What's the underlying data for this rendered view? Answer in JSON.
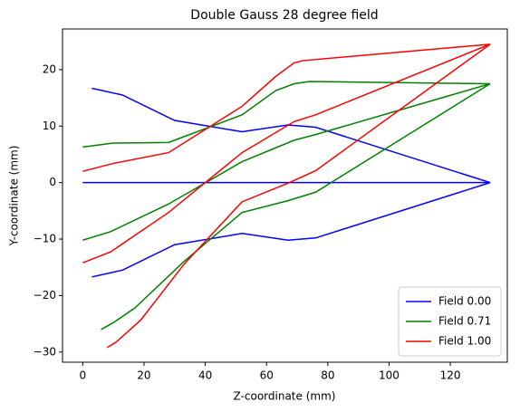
{
  "chart_data": {
    "type": "line",
    "title": "Double Gauss 28 degree field",
    "x_label": "Z-coordinate (mm)",
    "y_label": "Y-coordinate (mm)",
    "xlim": [
      -6.6,
      138.6
    ],
    "ylim": [
      -31.8,
      27.2
    ],
    "xticks": [
      0,
      20,
      40,
      60,
      80,
      100,
      120
    ],
    "yticks": [
      {
        "value": -30,
        "label": "−30"
      },
      {
        "value": -20,
        "label": "−20"
      },
      {
        "value": -10,
        "label": "−10"
      },
      0,
      10,
      20
    ],
    "legend": "lower right",
    "series": [
      {
        "name": "Field 0.00",
        "color": "#0000ff",
        "rays": [
          {
            "x": [
              0,
              133
            ],
            "values": [
              0,
              0
            ]
          },
          {
            "x": [
              3,
              13,
              30,
              52,
              67,
              76,
              133
            ],
            "values": [
              16.7,
              15.5,
              11,
              9,
              10.2,
              9.8,
              0
            ]
          },
          {
            "x": [
              3,
              13,
              30,
              52,
              67,
              76,
              133
            ],
            "values": [
              -16.7,
              -15.5,
              -11,
              -9,
              -10.2,
              -9.8,
              0
            ]
          }
        ]
      },
      {
        "name": "Field 0.71",
        "color": "#008000",
        "rays": [
          {
            "x": [
              0,
              9,
              28,
              52,
              69,
              76,
              133
            ],
            "values": [
              -10.2,
              -8.7,
              -3.8,
              3.7,
              7.5,
              8.5,
              17.5
            ]
          },
          {
            "x": [
              0,
              10,
              28,
              52,
              63,
              69,
              74,
              133
            ],
            "values": [
              6.3,
              7,
              7.1,
              12,
              16.3,
              17.5,
              17.9,
              17.5
            ]
          },
          {
            "x": [
              6,
              10,
              17,
              33,
              52,
              67,
              76,
              133
            ],
            "values": [
              -26,
              -24.8,
              -22.2,
              -14,
              -5.3,
              -3.2,
              -1.7,
              17.5
            ]
          }
        ]
      },
      {
        "name": "Field 1.00",
        "color": "#ff0000",
        "rays": [
          {
            "x": [
              0,
              9,
              28,
              52,
              69,
              76,
              133
            ],
            "values": [
              -14.2,
              -12.3,
              -5.3,
              5.3,
              10.8,
              12,
              24.5
            ]
          },
          {
            "x": [
              0,
              10,
              28,
              52,
              63,
              69,
              72,
              133
            ],
            "values": [
              2,
              3.4,
              5.3,
              13.5,
              18.8,
              21.2,
              21.6,
              24.5
            ]
          },
          {
            "x": [
              8,
              11,
              19,
              33,
              52,
              67,
              76,
              133
            ],
            "values": [
              -29.2,
              -28.2,
              -24.3,
              -14.5,
              -3.4,
              -0.1,
              2.1,
              24.5
            ]
          }
        ]
      }
    ]
  }
}
